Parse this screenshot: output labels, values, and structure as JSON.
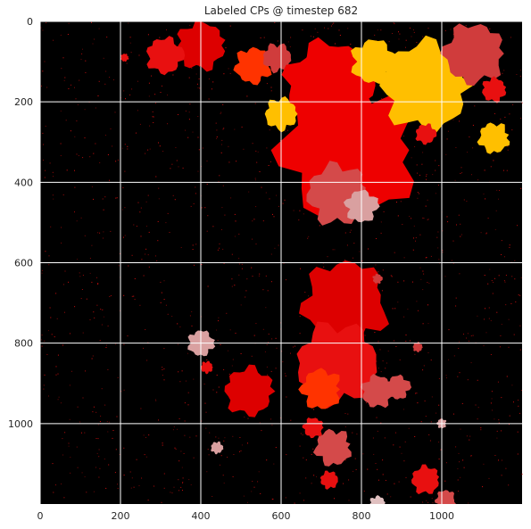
{
  "chart_data": {
    "type": "heatmap",
    "title": "Labeled CPs @ timestep 682",
    "xlabel": "",
    "ylabel": "",
    "xlim": [
      0,
      1200
    ],
    "ylim": [
      1200,
      0
    ],
    "x_ticks": [
      "0",
      "200",
      "400",
      "600",
      "800",
      "1000"
    ],
    "y_ticks": [
      "0",
      "200",
      "400",
      "600",
      "800",
      "1000"
    ],
    "grid": true,
    "background_color": "#000000",
    "grid_color": "#ffffff",
    "noise_color": "#e01010",
    "regions": [
      {
        "color": "#dd0000",
        "cx": 400,
        "cy": 60,
        "r": 60
      },
      {
        "color": "#e81010",
        "cx": 310,
        "cy": 85,
        "r": 45
      },
      {
        "color": "#ff3300",
        "cx": 530,
        "cy": 110,
        "r": 45
      },
      {
        "color": "#d03c3c",
        "cx": 590,
        "cy": 90,
        "r": 35
      },
      {
        "color": "#ee0000",
        "cx": 770,
        "cy": 320,
        "r": 170
      },
      {
        "color": "#ee0000",
        "cx": 720,
        "cy": 160,
        "r": 110
      },
      {
        "color": "#ffbf00",
        "cx": 960,
        "cy": 160,
        "r": 110
      },
      {
        "color": "#ffbf00",
        "cx": 830,
        "cy": 100,
        "r": 55
      },
      {
        "color": "#ffbf00",
        "cx": 600,
        "cy": 230,
        "r": 40
      },
      {
        "color": "#ffbf00",
        "cx": 1130,
        "cy": 290,
        "r": 38
      },
      {
        "color": "#d03c3c",
        "cx": 1080,
        "cy": 80,
        "r": 75
      },
      {
        "color": "#d44a4a",
        "cx": 740,
        "cy": 430,
        "r": 75
      },
      {
        "color": "#d9a0a0",
        "cx": 800,
        "cy": 460,
        "r": 40
      },
      {
        "color": "#e81010",
        "cx": 1130,
        "cy": 170,
        "r": 30
      },
      {
        "color": "#e81010",
        "cx": 960,
        "cy": 280,
        "r": 25
      },
      {
        "color": "#dd0000",
        "cx": 760,
        "cy": 700,
        "r": 105
      },
      {
        "color": "#e81010",
        "cx": 740,
        "cy": 850,
        "r": 100
      },
      {
        "color": "#ff3300",
        "cx": 700,
        "cy": 915,
        "r": 50
      },
      {
        "color": "#d44a4a",
        "cx": 840,
        "cy": 920,
        "r": 40
      },
      {
        "color": "#dd0000",
        "cx": 520,
        "cy": 920,
        "r": 60
      },
      {
        "color": "#d9a0a0",
        "cx": 400,
        "cy": 800,
        "r": 32
      },
      {
        "color": "#e81010",
        "cx": 415,
        "cy": 860,
        "r": 15
      },
      {
        "color": "#d44a4a",
        "cx": 730,
        "cy": 1060,
        "r": 45
      },
      {
        "color": "#e81010",
        "cx": 680,
        "cy": 1010,
        "r": 25
      },
      {
        "color": "#e81010",
        "cx": 960,
        "cy": 1140,
        "r": 35
      },
      {
        "color": "#d44a4a",
        "cx": 890,
        "cy": 910,
        "r": 30
      },
      {
        "color": "#e0c0c0",
        "cx": 840,
        "cy": 1200,
        "r": 20
      },
      {
        "color": "#d9a0a0",
        "cx": 440,
        "cy": 1060,
        "r": 15
      },
      {
        "color": "#d44a4a",
        "cx": 1010,
        "cy": 1190,
        "r": 25
      },
      {
        "color": "#e81010",
        "cx": 720,
        "cy": 1140,
        "r": 22
      },
      {
        "color": "#d9a0a0",
        "cx": 1000,
        "cy": 1000,
        "r": 12
      },
      {
        "color": "#d03c3c",
        "cx": 840,
        "cy": 640,
        "r": 12
      },
      {
        "color": "#d03c3c",
        "cx": 940,
        "cy": 810,
        "r": 12
      },
      {
        "color": "#e81010",
        "cx": 210,
        "cy": 90,
        "r": 10
      }
    ]
  }
}
